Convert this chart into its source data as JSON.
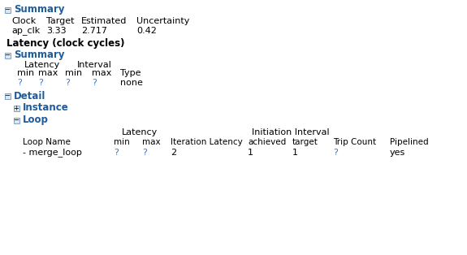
{
  "bg_color": "#ffffff",
  "title_color": "#1f5c99",
  "blue_q_color": "#4472c4",
  "black_color": "#000000",
  "section1_title": "Summary",
  "clock_headers": [
    "Clock",
    "Target",
    "Estimated",
    "Uncertainty"
  ],
  "clock_data": [
    "ap_clk",
    "3.33",
    "2.717",
    "0.42"
  ],
  "latency_title": "Latency (clock cycles)",
  "section2_title": "Summary",
  "lat_header1": "Latency",
  "lat_header2": "Interval",
  "lat_col_headers": [
    "min",
    "max",
    "min",
    "max",
    "Type"
  ],
  "lat_col_data": [
    "?",
    "?",
    "?",
    "?",
    "none"
  ],
  "section3_title": "Detail",
  "instance_title": "Instance",
  "loop_title": "Loop",
  "loop_header1": "Latency",
  "loop_header2": "Initiation Interval",
  "loop_col_headers": [
    "Loop Name",
    "min",
    "max",
    "Iteration Latency",
    "achieved",
    "target",
    "Trip Count",
    "Pipelined"
  ],
  "loop_data": [
    "- merge_loop",
    "?",
    "?",
    "2",
    "1",
    "1",
    "?",
    "yes"
  ],
  "box_edge_color": "#7f9fbf",
  "box_face_color": "#dce6f1"
}
